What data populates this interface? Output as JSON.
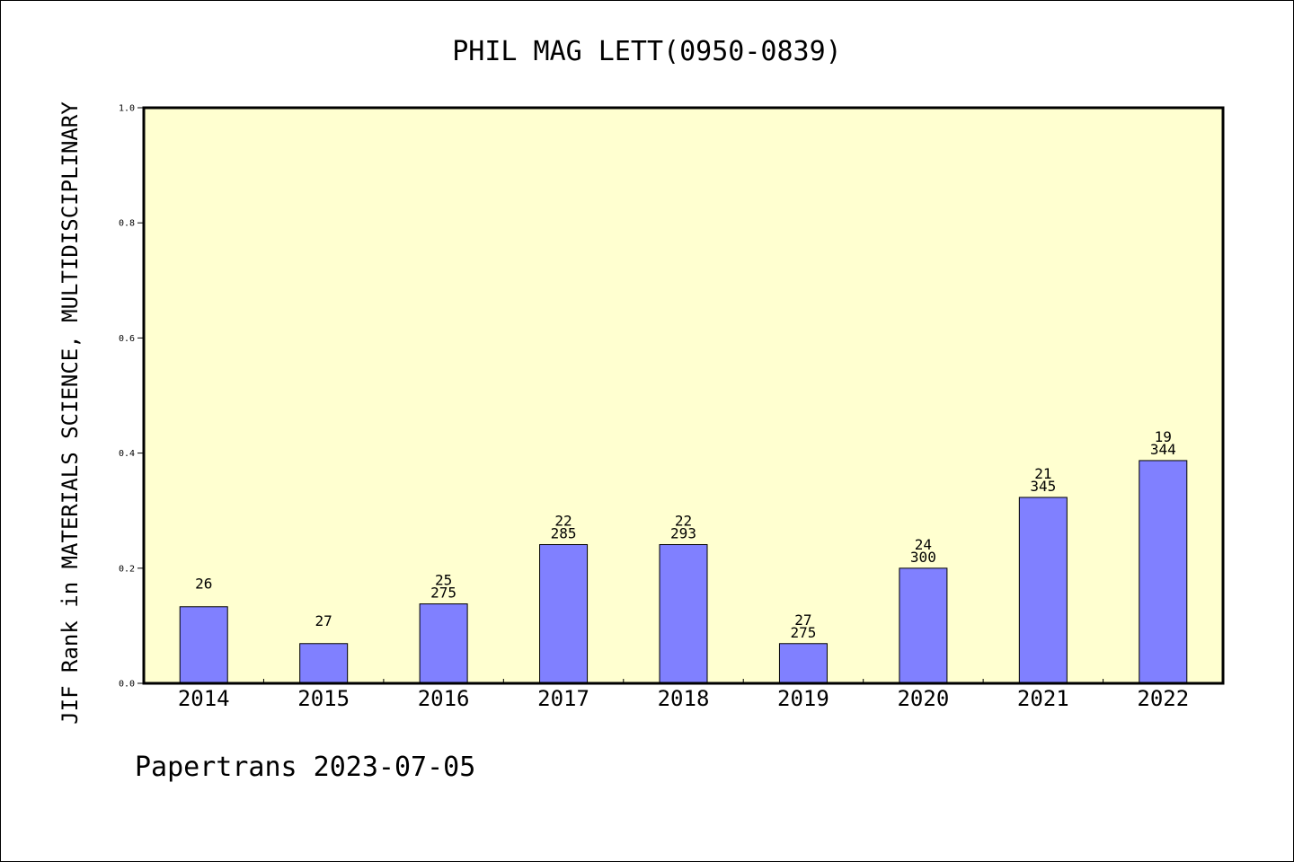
{
  "chart_data": {
    "type": "bar",
    "title": "PHIL MAG LETT(0950-0839)",
    "xlabel": "",
    "ylabel": "JIF Rank in MATERIALS SCIENCE, MULTIDISCIPLINARY",
    "ylim": [
      0,
      1.0
    ],
    "yticks": [
      "0.0",
      "0.2",
      "0.4",
      "0.6",
      "0.8",
      "1.0"
    ],
    "grid": false,
    "categories": [
      "2014",
      "2015",
      "2016",
      "2017",
      "2018",
      "2019",
      "2020",
      "2021",
      "2022"
    ],
    "values": [
      0.133,
      0.069,
      0.138,
      0.241,
      0.241,
      0.069,
      0.2,
      0.323,
      0.387
    ],
    "rank_labels": [
      {
        "rank": "26",
        "total": ""
      },
      {
        "rank": "27",
        "total": ""
      },
      {
        "rank": "25",
        "total": "275"
      },
      {
        "rank": "22",
        "total": "285"
      },
      {
        "rank": "22",
        "total": "293"
      },
      {
        "rank": "27",
        "total": "275"
      },
      {
        "rank": "24",
        "total": "300"
      },
      {
        "rank": "21",
        "total": "345"
      },
      {
        "rank": "19",
        "total": "344"
      }
    ],
    "colors": {
      "bar": "#8080ff",
      "plot_background": "#ffffd0",
      "frame": "#000000"
    }
  },
  "footer": "Papertrans 2023-07-05"
}
